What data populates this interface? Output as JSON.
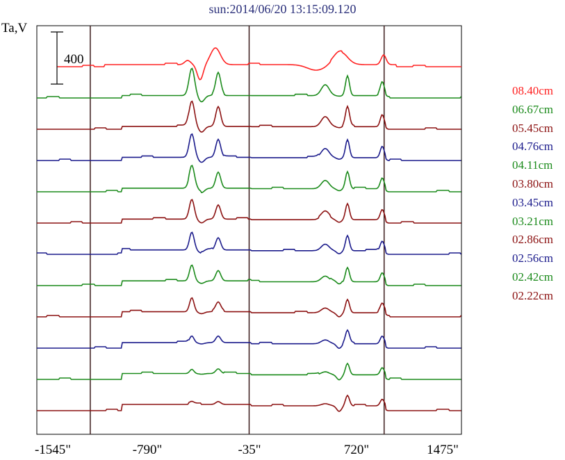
{
  "title": "sun:2014/06/20 13:15:09.120",
  "ylabel": "Ta,V",
  "scale_bar_label": "400",
  "chart_data": {
    "type": "line",
    "xlim": [
      -1545,
      1475
    ],
    "x_ticks": [
      "-1545\"",
      "-790\"",
      "-35\"",
      "720\"",
      "1475\""
    ],
    "vertical_lines": [
      -1165,
      -35,
      925
    ],
    "scale_bar_value": 400,
    "series": [
      {
        "name": "08.40cm",
        "color": "#ff2020"
      },
      {
        "name": "06.67cm",
        "color": "#1a8a1a"
      },
      {
        "name": "05.45cm",
        "color": "#8b1010"
      },
      {
        "name": "04.76cm",
        "color": "#1a1a8b"
      },
      {
        "name": "04.11cm",
        "color": "#1a8a1a"
      },
      {
        "name": "03.80cm",
        "color": "#8b1010"
      },
      {
        "name": "03.45cm",
        "color": "#1a1a8b"
      },
      {
        "name": "03.21cm",
        "color": "#1a8a1a"
      },
      {
        "name": "02.86cm",
        "color": "#8b1010"
      },
      {
        "name": "02.56cm",
        "color": "#1a1a8b"
      },
      {
        "name": "02.42cm",
        "color": "#1a8a1a"
      },
      {
        "name": "02.22cm",
        "color": "#8b1010"
      }
    ]
  }
}
